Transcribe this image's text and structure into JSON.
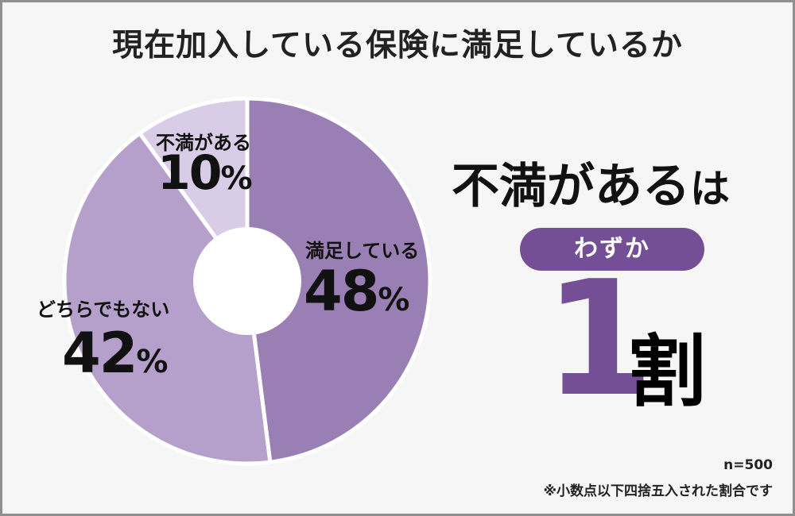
{
  "chart_data": {
    "type": "pie",
    "donut": true,
    "title": "現在加入している保険に満足しているか",
    "slices": [
      {
        "label": "満足している",
        "value": 48,
        "color": "#9a7fb5"
      },
      {
        "label": "どちらでもない",
        "value": 42,
        "color": "#b4a0cb"
      },
      {
        "label": "不満がある",
        "value": 10,
        "color": "#d8cce6"
      }
    ],
    "unit": "%"
  },
  "side": {
    "headline_main": "不満がある",
    "headline_tail": "は",
    "pill_text": "わずか",
    "big_number": "1",
    "big_unit": "割"
  },
  "notes": {
    "sample": "n=500",
    "rounding": "※小数点以下四捨五入された割合です"
  },
  "colors": {
    "accent": "#744f96",
    "frame": "#8f8f8f",
    "background": "#f6f6f6",
    "text": "#111111"
  }
}
